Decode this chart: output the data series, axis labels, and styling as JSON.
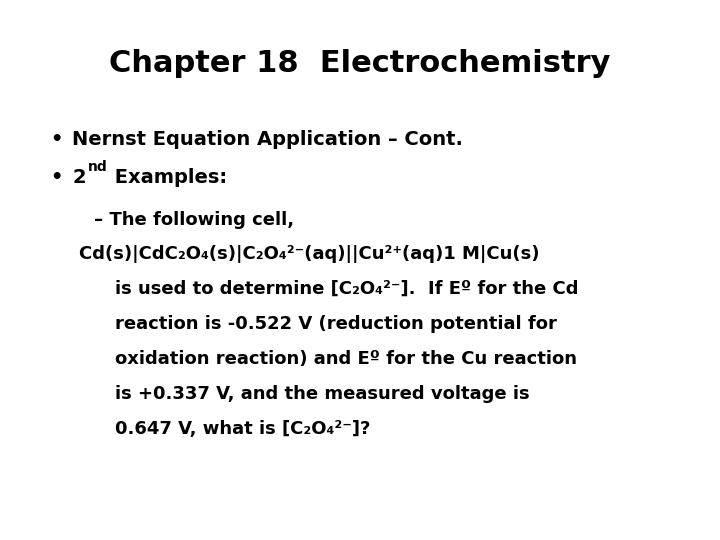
{
  "title": "Chapter 18  Electrochemistry",
  "background_color": "#ffffff",
  "text_color": "#000000",
  "title_fontsize": 22,
  "body_fontsize": 14,
  "small_fontsize": 10,
  "font_family": "DejaVu Sans",
  "bullet1": "Nernst Equation Application – Cont.",
  "bullet2_main": "Examples:",
  "bullet2_prefix": "2",
  "bullet2_superscript": "nd",
  "sub_bullet": "– The following cell,",
  "line1": "Cd(s)|CdC₂O₄(s)|C₂O₄²⁻(aq)||Cu²⁺(aq)1 M|Cu(s)",
  "line2": "is used to determine [C₂O₄²⁻].  If Eº for the Cd",
  "line3": "reaction is -0.522 V (reduction potential for",
  "line4": "oxidation reaction) and Eº for the Cu reaction",
  "line5": "is +0.337 V, and the measured voltage is",
  "line6": "0.647 V, what is [C₂O₄²⁻]?"
}
